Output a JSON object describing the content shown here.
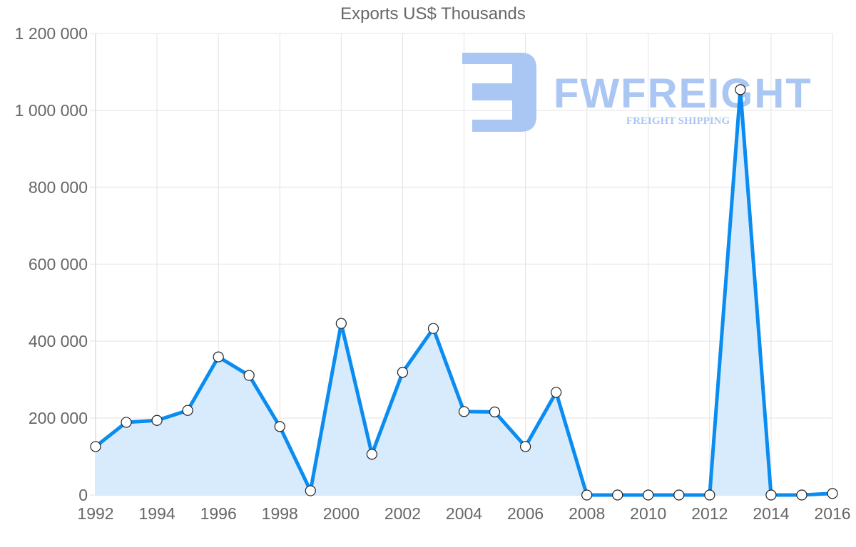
{
  "chart_data": {
    "type": "line",
    "title": "Exports US$ Thousands",
    "xlabel": "",
    "ylabel": "",
    "x": [
      1992,
      1993,
      1994,
      1995,
      1996,
      1997,
      1998,
      1999,
      2000,
      2001,
      2002,
      2003,
      2004,
      2005,
      2006,
      2007,
      2008,
      2009,
      2010,
      2011,
      2012,
      2013,
      2014,
      2015,
      2016
    ],
    "series": [
      {
        "name": "Exports US$ Thousands",
        "values": [
          126000,
          189000,
          194000,
          220000,
          359000,
          311000,
          178000,
          11000,
          446000,
          106000,
          319000,
          433000,
          217000,
          216000,
          126000,
          267000,
          0,
          0,
          0,
          0,
          0,
          1054000,
          0,
          0,
          4000
        ],
        "line_color": "#0a8cf0",
        "fill_color": "#d8ebfc"
      }
    ],
    "ylim": [
      0,
      1200000
    ],
    "yticks": [
      0,
      200000,
      400000,
      600000,
      800000,
      1000000,
      1200000
    ],
    "ytick_labels": [
      "0",
      "200 000",
      "400 000",
      "600 000",
      "800 000",
      "1 000 000",
      "1 200 000"
    ],
    "xtick_labels": [
      "1992",
      "1994",
      "1996",
      "1998",
      "2000",
      "2002",
      "2004",
      "2006",
      "2008",
      "2010",
      "2012",
      "2014",
      "2016"
    ],
    "grid": true,
    "legend": "none",
    "area_fill": true
  },
  "watermark": {
    "brand": "FWFREIGHT",
    "tagline": "FREIGHT SHIPPING",
    "color": "#aac6f2"
  }
}
